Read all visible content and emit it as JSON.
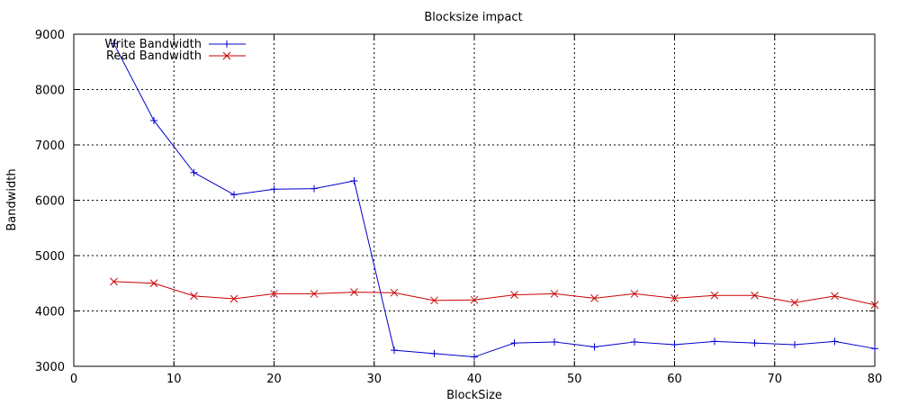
{
  "chart_data": {
    "type": "line",
    "title": "Blocksize impact",
    "xlabel": "BlockSize",
    "ylabel": "Bandwidth",
    "xlim": [
      0,
      80
    ],
    "ylim": [
      3000,
      9000
    ],
    "xticks": [
      0,
      10,
      20,
      30,
      40,
      50,
      60,
      70,
      80
    ],
    "yticks": [
      3000,
      4000,
      5000,
      6000,
      7000,
      8000,
      9000
    ],
    "grid": true,
    "legend_position": "top-left",
    "series": [
      {
        "name": "Write Bandwidth",
        "color": "#0000cc",
        "marker": "plus",
        "x": [
          4,
          8,
          12,
          16,
          20,
          24,
          28,
          32,
          36,
          40,
          44,
          48,
          52,
          56,
          60,
          64,
          68,
          72,
          76,
          80
        ],
        "y": [
          8830,
          7440,
          6500,
          6100,
          6200,
          6210,
          6350,
          3290,
          3230,
          3170,
          3420,
          3440,
          3350,
          3440,
          3390,
          3450,
          3420,
          3390,
          3450,
          3320
        ]
      },
      {
        "name": "Read Bandwidth",
        "color": "#cc0000",
        "marker": "cross",
        "x": [
          4,
          8,
          12,
          16,
          20,
          24,
          28,
          32,
          36,
          40,
          44,
          48,
          52,
          56,
          60,
          64,
          68,
          72,
          76,
          80
        ],
        "y": [
          4530,
          4500,
          4270,
          4220,
          4310,
          4310,
          4340,
          4330,
          4190,
          4200,
          4290,
          4310,
          4230,
          4310,
          4230,
          4280,
          4280,
          4150,
          4270,
          4110
        ]
      }
    ]
  }
}
